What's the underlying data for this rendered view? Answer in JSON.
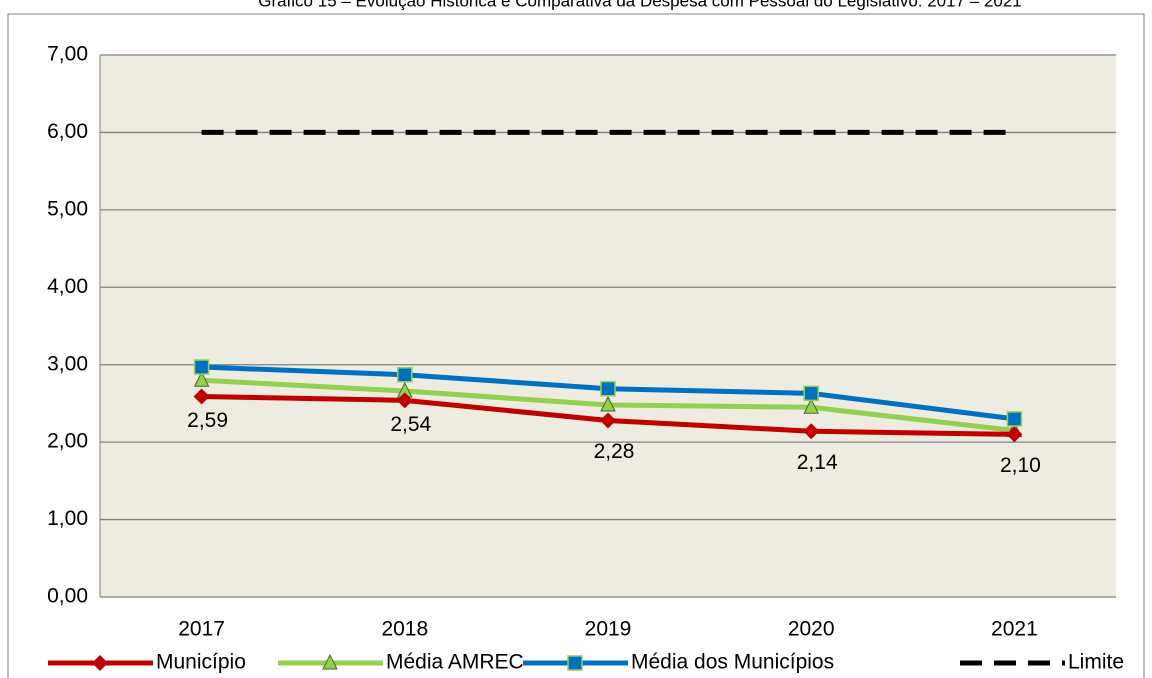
{
  "chart_data": {
    "type": "line",
    "title": "Gráfico 15 – Evolução Histórica e Comparativa da Despesa com Pessoal do Legislativo: 2017 – 2021",
    "categories": [
      "2017",
      "2018",
      "2019",
      "2020",
      "2021"
    ],
    "series": [
      {
        "name": "Município",
        "color": "#c00000",
        "marker": "diamond",
        "values": [
          2.59,
          2.54,
          2.28,
          2.14,
          2.1
        ],
        "value_labels": [
          "2,59",
          "2,54",
          "2,28",
          "2,14",
          "2,10"
        ]
      },
      {
        "name": "Média AMREC",
        "color": "#92d050",
        "marker": "triangle",
        "values": [
          2.8,
          2.66,
          2.48,
          2.45,
          2.15
        ]
      },
      {
        "name": "Média dos Municípios",
        "color": "#0070c0",
        "marker": "square",
        "values": [
          2.97,
          2.87,
          2.69,
          2.63,
          2.3
        ]
      },
      {
        "name": "Limite",
        "color": "#000000",
        "marker": "none",
        "dashed": true,
        "values": [
          6,
          6,
          6,
          6,
          6
        ]
      }
    ],
    "ylim": [
      0,
      7
    ],
    "yticks": [
      {
        "value": 0,
        "label": "0,00"
      },
      {
        "value": 1,
        "label": "1,00"
      },
      {
        "value": 2,
        "label": "2,00"
      },
      {
        "value": 3,
        "label": "3,00"
      },
      {
        "value": 4,
        "label": "4,00"
      },
      {
        "value": 5,
        "label": "5,00"
      },
      {
        "value": 6,
        "label": "6,00"
      },
      {
        "value": 7,
        "label": "7,00"
      }
    ],
    "grid": true,
    "legend": "bottom",
    "plot_background": "#eeece1"
  }
}
